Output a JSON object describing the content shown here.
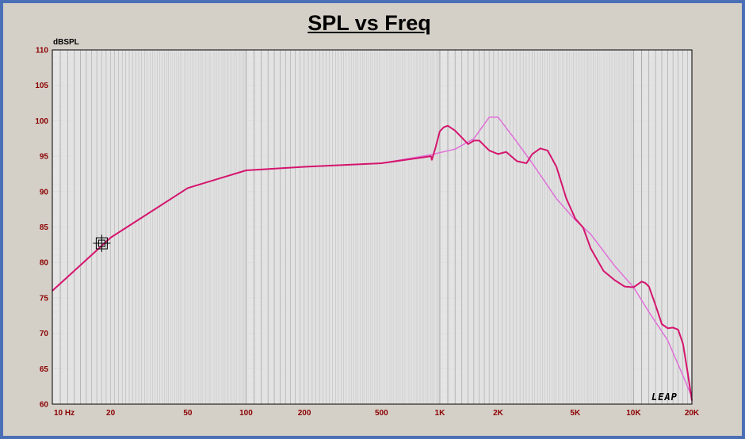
{
  "chart_data": {
    "type": "line",
    "title": "SPL vs Freq",
    "ylabel": "dBSPL",
    "xlabel": "",
    "x_scale": "log",
    "xlim": [
      10,
      20000
    ],
    "ylim": [
      60,
      110
    ],
    "grid": true,
    "x_tick_values": [
      10,
      20,
      50,
      100,
      200,
      500,
      1000,
      2000,
      5000,
      10000,
      20000
    ],
    "x_tick_labels": [
      "10 Hz",
      "20",
      "50",
      "100",
      "200",
      "500",
      "1K",
      "2K",
      "5K",
      "10K",
      "20K"
    ],
    "y_ticks": [
      60,
      65,
      70,
      75,
      80,
      85,
      90,
      95,
      100,
      105,
      110
    ],
    "series": [
      {
        "color": "#e070d8",
        "x": [
          10,
          20,
          50,
          100,
          200,
          500,
          900,
          1000,
          1200,
          1500,
          1800,
          2000,
          2500,
          3000,
          4000,
          5000,
          6000,
          8000,
          10000,
          12000,
          15000,
          18000,
          20000
        ],
        "y": [
          76,
          83.5,
          90.5,
          93,
          93.5,
          94,
          95.2,
          95.5,
          96,
          97.5,
          100.5,
          100.5,
          97,
          94,
          89,
          86,
          84,
          79.5,
          76.5,
          73,
          69,
          64,
          61
        ]
      },
      {
        "color": "#d4156e",
        "x": [
          10,
          20,
          50,
          100,
          200,
          500,
          900,
          910,
          950,
          1000,
          1050,
          1100,
          1200,
          1400,
          1500,
          1600,
          1800,
          2000,
          2200,
          2500,
          2800,
          3000,
          3300,
          3600,
          4000,
          4500,
          5000,
          5500,
          6000,
          7000,
          8000,
          9000,
          10000,
          10500,
          11000,
          11500,
          12000,
          13000,
          14000,
          15000,
          16000,
          17000,
          18000,
          19000,
          20000
        ],
        "y": [
          76,
          83.5,
          90.5,
          93,
          93.5,
          94,
          95,
          94.5,
          96.2,
          98.5,
          99.1,
          99.3,
          98.6,
          96.7,
          97.2,
          97.2,
          95.8,
          95.3,
          95.6,
          94.3,
          94,
          95.3,
          96.1,
          95.8,
          93.5,
          89,
          86.2,
          84.9,
          82,
          78.8,
          77.5,
          76.6,
          76.5,
          76.9,
          77.3,
          77.1,
          76.6,
          73.9,
          71.3,
          70.7,
          70.8,
          70.5,
          68.5,
          64.5,
          60.5
        ]
      }
    ],
    "marker": {
      "x": 18,
      "y": 82.7
    }
  },
  "logo_text": "LEAP"
}
